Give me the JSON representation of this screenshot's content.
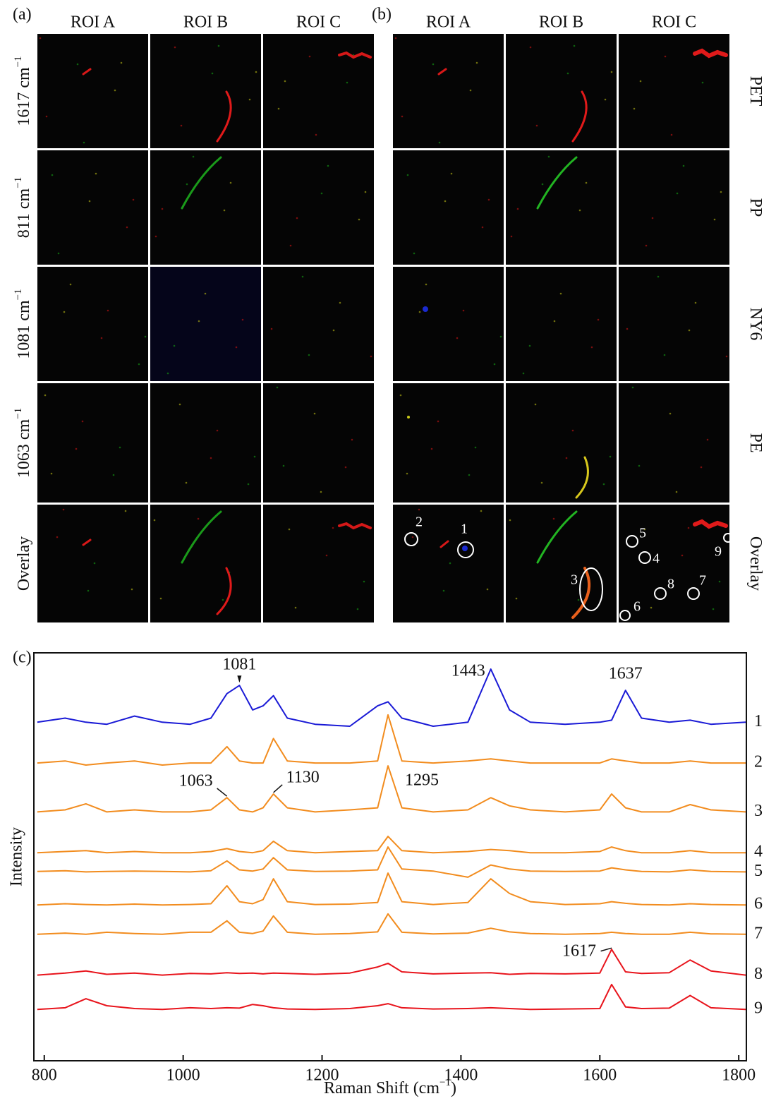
{
  "panels": [
    {
      "label": "(a)",
      "columns": [
        "ROI A",
        "ROI B",
        "ROI C"
      ],
      "rows": [
        {
          "text": "1617 cm",
          "sup": "−1"
        },
        {
          "text": "811 cm",
          "sup": "−1"
        },
        {
          "text": "1081 cm",
          "sup": "−1"
        },
        {
          "text": "1063 cm",
          "sup": "−1"
        },
        {
          "text": "Overlay"
        }
      ]
    },
    {
      "label": "(b)",
      "columns": [
        "ROI A",
        "ROI B",
        "ROI C"
      ],
      "rows": [
        {
          "text": "PET"
        },
        {
          "text": "PP"
        },
        {
          "text": "NY6"
        },
        {
          "text": "PE"
        },
        {
          "text": "Overlay"
        }
      ],
      "markers": [
        "1",
        "2",
        "3",
        "4",
        "5",
        "6",
        "7",
        "8",
        "9"
      ]
    }
  ],
  "chart_data": {
    "type": "line",
    "label": "(c)",
    "x_label": {
      "text": "Raman Shift (cm",
      "sup": "−1",
      "end": ")"
    },
    "y_label": "Intensity",
    "xlim": [
      785,
      1811
    ],
    "xticks": [
      800,
      1000,
      1200,
      1400,
      1600,
      1800
    ],
    "ylim": [
      0,
      100
    ],
    "x": [
      790,
      830,
      860,
      890,
      930,
      970,
      1010,
      1040,
      1063,
      1081,
      1100,
      1115,
      1130,
      1150,
      1190,
      1240,
      1280,
      1295,
      1315,
      1360,
      1410,
      1443,
      1470,
      1500,
      1550,
      1600,
      1617,
      1637,
      1660,
      1700,
      1730,
      1760,
      1810
    ],
    "series": [
      {
        "name": "1",
        "color": "#1a1ad6",
        "values": [
          83,
          84,
          83,
          82.5,
          84.5,
          83,
          82.5,
          84,
          90,
          92,
          86,
          87,
          89.5,
          84,
          82.5,
          82,
          87,
          88,
          84,
          82,
          83,
          96,
          86,
          83,
          82.5,
          83,
          83.5,
          90.8,
          84,
          83,
          83.5,
          82.5,
          83
        ]
      },
      {
        "name": "2",
        "color": "#f28c1e",
        "values": [
          73,
          73.5,
          72.5,
          73,
          73.5,
          72.5,
          73,
          73,
          77,
          73.5,
          73,
          73,
          79,
          73.5,
          73,
          73,
          73.5,
          84.8,
          73.5,
          73,
          73.5,
          74,
          73.5,
          73,
          73,
          73,
          74,
          73.5,
          73,
          73,
          73.5,
          73,
          73
        ]
      },
      {
        "name": "3",
        "color": "#f28c1e",
        "values": [
          61,
          61.5,
          63,
          61,
          61.5,
          61,
          61,
          61.5,
          64.5,
          61.5,
          61,
          62,
          65.4,
          62,
          61,
          61.5,
          62,
          72.3,
          62,
          61,
          61.5,
          64.5,
          62.5,
          61.5,
          61,
          61.5,
          65.4,
          62,
          61,
          61,
          62.8,
          61.5,
          61
        ]
      },
      {
        "name": "4",
        "color": "#f28c1e",
        "values": [
          51,
          51.3,
          51.5,
          51,
          51.3,
          51,
          51,
          51.3,
          52,
          51.3,
          51,
          51.5,
          53.8,
          51.5,
          51,
          51.3,
          51.5,
          55,
          51.5,
          51,
          51.3,
          51.8,
          51.5,
          51,
          51,
          51.3,
          52.4,
          51.5,
          51,
          51,
          51.5,
          51,
          51
        ]
      },
      {
        "name": "5",
        "color": "#f28c1e",
        "values": [
          46.4,
          46.6,
          46.3,
          46.4,
          46.5,
          46.4,
          46.3,
          46.6,
          49,
          46.8,
          46.5,
          47,
          49.8,
          46.8,
          46.4,
          46.5,
          46.8,
          52.4,
          47,
          46.5,
          45,
          48,
          47,
          46.5,
          46.4,
          46.5,
          47.3,
          46.8,
          46.4,
          46.3,
          46.8,
          46.4,
          46.3
        ]
      },
      {
        "name": "6",
        "color": "#f28c1e",
        "values": [
          38.2,
          38.5,
          38.3,
          38.2,
          38.4,
          38.2,
          38.3,
          38.5,
          42.9,
          39,
          38.5,
          39.5,
          44.6,
          39,
          38.3,
          38.4,
          38.8,
          46,
          39,
          38.3,
          38.8,
          44.6,
          41,
          39,
          38.3,
          38.5,
          39,
          38.6,
          38.3,
          38.2,
          38.5,
          38.3,
          38.2
        ]
      },
      {
        "name": "7",
        "color": "#f28c1e",
        "values": [
          31,
          31.3,
          31,
          31.5,
          31.2,
          31,
          31.5,
          31.5,
          34.3,
          31.5,
          31.2,
          31.8,
          35.5,
          31.5,
          31,
          31.2,
          31.6,
          36,
          31.5,
          31.1,
          31.3,
          32.5,
          31.6,
          31.2,
          31,
          31.2,
          31.5,
          31.2,
          31,
          31,
          31.5,
          31.1,
          31
        ]
      },
      {
        "name": "8",
        "color": "#e8141c",
        "values": [
          21,
          21.5,
          22,
          21.2,
          21.5,
          21,
          21.4,
          21.3,
          21.6,
          21.4,
          21.5,
          21.3,
          21.5,
          21.4,
          21.2,
          21.5,
          23,
          23.9,
          21.8,
          21.3,
          21.5,
          21.6,
          21.2,
          21.4,
          21.3,
          21.5,
          27.3,
          21.8,
          21.4,
          21.6,
          24.7,
          22,
          21
        ]
      },
      {
        "name": "9",
        "color": "#e8141c",
        "values": [
          12.6,
          13,
          15.2,
          13.5,
          12.8,
          12.6,
          13,
          12.8,
          13,
          12.9,
          13.8,
          13.5,
          13,
          12.7,
          12.6,
          12.8,
          13.5,
          14,
          13,
          12.7,
          12.8,
          13,
          12.8,
          12.6,
          12.7,
          12.8,
          18.7,
          13.2,
          12.8,
          12.9,
          16,
          13,
          12.6
        ]
      }
    ],
    "annotations": [
      {
        "text": "1081",
        "x": 1081,
        "y": 92
      },
      {
        "text": "1443",
        "x": 1443,
        "y": 96
      },
      {
        "text": "1637",
        "x": 1637,
        "y": 90.8
      },
      {
        "text": "1063",
        "x": 1063,
        "y": 64.5
      },
      {
        "text": "1130",
        "x": 1130,
        "y": 65.4
      },
      {
        "text": "1295",
        "x": 1295,
        "y": 72.3
      },
      {
        "text": "1617",
        "x": 1617,
        "y": 27.3
      }
    ]
  }
}
